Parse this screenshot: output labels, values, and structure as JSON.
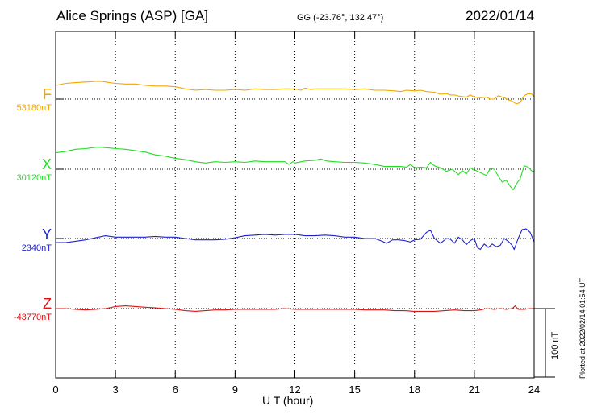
{
  "header": {
    "station": "Alice Springs (ASP)  [GA]",
    "coords": "GG (-23.76°, 132.47°)",
    "date": "2022/01/14"
  },
  "footer": {
    "xlabel": "U T (hour)",
    "plotted": "Plotted at 2022/02/14 01:54 UT",
    "scale_label": "100 nT"
  },
  "colors": {
    "F": "#f0a800",
    "X": "#22dd22",
    "Y": "#1e22cc",
    "Z": "#dd1111",
    "axis": "#000000"
  },
  "chart_data": {
    "type": "line",
    "xlabel": "U T (hour)",
    "xlim": [
      0,
      24
    ],
    "xticks": [
      0,
      3,
      6,
      9,
      12,
      15,
      18,
      21,
      24
    ],
    "scale_bar_nT": 100,
    "unit": "nT",
    "grid": true,
    "series": [
      {
        "name": "F",
        "baseline_label": "53180nT",
        "baseline": 53180,
        "points": [
          [
            0,
            53200
          ],
          [
            0.5,
            53203
          ],
          [
            1,
            53204
          ],
          [
            1.5,
            53205
          ],
          [
            2,
            53206
          ],
          [
            2.3,
            53206
          ],
          [
            2.7,
            53204
          ],
          [
            3,
            53203
          ],
          [
            3.5,
            53202
          ],
          [
            4,
            53202
          ],
          [
            4.5,
            53200
          ],
          [
            5,
            53199
          ],
          [
            5.5,
            53199
          ],
          [
            6,
            53198
          ],
          [
            6.5,
            53195
          ],
          [
            7,
            53193
          ],
          [
            7.5,
            53194
          ],
          [
            8,
            53193
          ],
          [
            8.5,
            53193
          ],
          [
            9,
            53194
          ],
          [
            9.5,
            53193
          ],
          [
            10,
            53195
          ],
          [
            10.5,
            53194
          ],
          [
            11,
            53194
          ],
          [
            11.5,
            53195
          ],
          [
            12,
            53195
          ],
          [
            12.3,
            53193
          ],
          [
            12.5,
            53196
          ],
          [
            12.8,
            53194
          ],
          [
            13,
            53195
          ],
          [
            13.5,
            53195
          ],
          [
            14,
            53195
          ],
          [
            14.5,
            53195
          ],
          [
            15,
            53194
          ],
          [
            15.5,
            53195
          ],
          [
            16,
            53193
          ],
          [
            16.5,
            53193
          ],
          [
            17,
            53192
          ],
          [
            17.3,
            53191
          ],
          [
            17.6,
            53193
          ],
          [
            18,
            53192
          ],
          [
            18.3,
            53193
          ],
          [
            18.6,
            53191
          ],
          [
            19,
            53190
          ],
          [
            19.3,
            53187
          ],
          [
            19.6,
            53188
          ],
          [
            19.8,
            53186
          ],
          [
            20,
            53186
          ],
          [
            20.3,
            53184
          ],
          [
            20.6,
            53183
          ],
          [
            20.8,
            53186
          ],
          [
            21,
            53183
          ],
          [
            21.3,
            53182
          ],
          [
            21.6,
            53183
          ],
          [
            21.8,
            53180
          ],
          [
            22,
            53180
          ],
          [
            22.2,
            53185
          ],
          [
            22.5,
            53182
          ],
          [
            22.7,
            53179
          ],
          [
            22.9,
            53177
          ],
          [
            23.1,
            53173
          ],
          [
            23.3,
            53175
          ],
          [
            23.5,
            53185
          ],
          [
            23.7,
            53188
          ],
          [
            23.9,
            53187
          ],
          [
            24,
            53183
          ]
        ]
      },
      {
        "name": "X",
        "baseline_label": "30120nT",
        "baseline": 30120,
        "points": [
          [
            0,
            30144
          ],
          [
            0.5,
            30146
          ],
          [
            1,
            30149
          ],
          [
            1.5,
            30150
          ],
          [
            2,
            30152
          ],
          [
            2.3,
            30152
          ],
          [
            2.7,
            30151
          ],
          [
            3,
            30150
          ],
          [
            3.5,
            30149
          ],
          [
            4,
            30147
          ],
          [
            4.5,
            30145
          ],
          [
            5,
            30141
          ],
          [
            5.5,
            30139
          ],
          [
            6,
            30136
          ],
          [
            6.5,
            30134
          ],
          [
            7,
            30131
          ],
          [
            7.5,
            30129
          ],
          [
            8,
            30131
          ],
          [
            8.5,
            30130
          ],
          [
            9,
            30131
          ],
          [
            9.5,
            30130
          ],
          [
            10,
            30132
          ],
          [
            10.5,
            30131
          ],
          [
            11,
            30131
          ],
          [
            11.5,
            30131
          ],
          [
            11.7,
            30127
          ],
          [
            11.9,
            30131
          ],
          [
            12,
            30129
          ],
          [
            12.5,
            30132
          ],
          [
            13,
            30133
          ],
          [
            13.3,
            30135
          ],
          [
            13.6,
            30132
          ],
          [
            14,
            30131
          ],
          [
            14.5,
            30130
          ],
          [
            15,
            30130
          ],
          [
            15.5,
            30129
          ],
          [
            16,
            30127
          ],
          [
            16.5,
            30124
          ],
          [
            17,
            30124
          ],
          [
            17.3,
            30124
          ],
          [
            17.6,
            30123
          ],
          [
            17.8,
            30127
          ],
          [
            18,
            30122
          ],
          [
            18.3,
            30123
          ],
          [
            18.6,
            30122
          ],
          [
            18.8,
            30130
          ],
          [
            19,
            30125
          ],
          [
            19.3,
            30122
          ],
          [
            19.6,
            30117
          ],
          [
            19.9,
            30120
          ],
          [
            20.2,
            30112
          ],
          [
            20.4,
            30118
          ],
          [
            20.6,
            30113
          ],
          [
            20.8,
            30122
          ],
          [
            21,
            30119
          ],
          [
            21.3,
            30115
          ],
          [
            21.6,
            30111
          ],
          [
            21.8,
            30121
          ],
          [
            22,
            30120
          ],
          [
            22.2,
            30110
          ],
          [
            22.4,
            30101
          ],
          [
            22.6,
            30104
          ],
          [
            22.8,
            30095
          ],
          [
            22.95,
            30090
          ],
          [
            23.1,
            30098
          ],
          [
            23.3,
            30106
          ],
          [
            23.5,
            30125
          ],
          [
            23.7,
            30123
          ],
          [
            23.9,
            30117
          ],
          [
            24,
            30117
          ]
        ]
      },
      {
        "name": "Y",
        "baseline_label": "2340nT",
        "baseline": 2340,
        "points": [
          [
            0,
            2334
          ],
          [
            0.5,
            2334
          ],
          [
            1,
            2336
          ],
          [
            1.5,
            2338
          ],
          [
            2,
            2341
          ],
          [
            2.5,
            2344
          ],
          [
            3,
            2342
          ],
          [
            3.5,
            2342
          ],
          [
            4,
            2342
          ],
          [
            4.5,
            2342
          ],
          [
            5,
            2343
          ],
          [
            5.5,
            2342
          ],
          [
            6,
            2342
          ],
          [
            6.5,
            2340
          ],
          [
            7,
            2338
          ],
          [
            7.5,
            2338
          ],
          [
            8,
            2338
          ],
          [
            8.5,
            2339
          ],
          [
            9,
            2341
          ],
          [
            9.5,
            2344
          ],
          [
            10,
            2345
          ],
          [
            10.5,
            2346
          ],
          [
            11,
            2345
          ],
          [
            11.5,
            2346
          ],
          [
            12,
            2346
          ],
          [
            12.5,
            2344
          ],
          [
            13,
            2344
          ],
          [
            13.5,
            2345
          ],
          [
            14,
            2344
          ],
          [
            14.5,
            2342
          ],
          [
            15,
            2342
          ],
          [
            15.5,
            2340
          ],
          [
            16,
            2340
          ],
          [
            16.3,
            2337
          ],
          [
            16.6,
            2333
          ],
          [
            16.9,
            2338
          ],
          [
            17.2,
            2338
          ],
          [
            17.5,
            2337
          ],
          [
            17.8,
            2335
          ],
          [
            18,
            2338
          ],
          [
            18.3,
            2339
          ],
          [
            18.6,
            2349
          ],
          [
            18.8,
            2352
          ],
          [
            19,
            2340
          ],
          [
            19.3,
            2333
          ],
          [
            19.6,
            2340
          ],
          [
            19.8,
            2339
          ],
          [
            20,
            2333
          ],
          [
            20.2,
            2342
          ],
          [
            20.4,
            2338
          ],
          [
            20.6,
            2331
          ],
          [
            20.8,
            2337
          ],
          [
            21,
            2340
          ],
          [
            21.15,
            2327
          ],
          [
            21.3,
            2324
          ],
          [
            21.5,
            2332
          ],
          [
            21.7,
            2327
          ],
          [
            21.9,
            2332
          ],
          [
            22.1,
            2328
          ],
          [
            22.3,
            2330
          ],
          [
            22.5,
            2340
          ],
          [
            22.7,
            2336
          ],
          [
            22.9,
            2330
          ],
          [
            23.0,
            2324
          ],
          [
            23.2,
            2340
          ],
          [
            23.4,
            2353
          ],
          [
            23.6,
            2354
          ],
          [
            23.8,
            2349
          ],
          [
            24,
            2335
          ]
        ]
      },
      {
        "name": "Z",
        "baseline_label": "-43770nT",
        "baseline": -43770,
        "points": [
          [
            0,
            -43770
          ],
          [
            0.5,
            -43770
          ],
          [
            1,
            -43771
          ],
          [
            1.5,
            -43772
          ],
          [
            2,
            -43771
          ],
          [
            2.5,
            -43770
          ],
          [
            3,
            -43767
          ],
          [
            3.5,
            -43766
          ],
          [
            4,
            -43767
          ],
          [
            4.5,
            -43768
          ],
          [
            5,
            -43769
          ],
          [
            5.5,
            -43770
          ],
          [
            6,
            -43771
          ],
          [
            6.5,
            -43773
          ],
          [
            7,
            -43774
          ],
          [
            7.5,
            -43773
          ],
          [
            8,
            -43772
          ],
          [
            8.5,
            -43772
          ],
          [
            9,
            -43771
          ],
          [
            9.5,
            -43771
          ],
          [
            10,
            -43771
          ],
          [
            10.5,
            -43771
          ],
          [
            11,
            -43771
          ],
          [
            11.5,
            -43770
          ],
          [
            12,
            -43771
          ],
          [
            12.5,
            -43771
          ],
          [
            13,
            -43771
          ],
          [
            13.5,
            -43771
          ],
          [
            14,
            -43771
          ],
          [
            14.5,
            -43771
          ],
          [
            15,
            -43771
          ],
          [
            15.5,
            -43772
          ],
          [
            16,
            -43772
          ],
          [
            16.5,
            -43772
          ],
          [
            17,
            -43773
          ],
          [
            17.5,
            -43773
          ],
          [
            18,
            -43774
          ],
          [
            18.5,
            -43774
          ],
          [
            19,
            -43774
          ],
          [
            19.5,
            -43773
          ],
          [
            20,
            -43772
          ],
          [
            20.5,
            -43773
          ],
          [
            21,
            -43773
          ],
          [
            21.3,
            -43772
          ],
          [
            21.6,
            -43770
          ],
          [
            22,
            -43771
          ],
          [
            22.3,
            -43770
          ],
          [
            22.6,
            -43771
          ],
          [
            22.9,
            -43770
          ],
          [
            23.05,
            -43766
          ],
          [
            23.2,
            -43771
          ],
          [
            23.5,
            -43771
          ],
          [
            23.8,
            -43770
          ],
          [
            24,
            -43770
          ]
        ]
      }
    ]
  }
}
